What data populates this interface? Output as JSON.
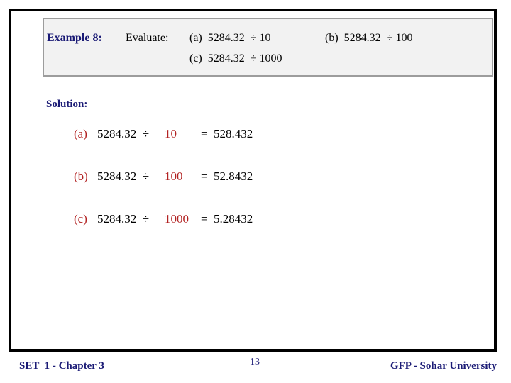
{
  "example_box": {
    "title": "Example 8:",
    "prompt": "Evaluate:",
    "items": [
      {
        "text": "(a)  5284.32  ÷ 10"
      },
      {
        "text": "(b)  5284.32  ÷ 100"
      },
      {
        "text": "(c)  5284.32  ÷ 1000"
      }
    ]
  },
  "solution": {
    "heading": "Solution:",
    "rows": [
      {
        "label": "(a)",
        "lhs": "5284.32  ÷",
        "divisor": "10",
        "eq": "=",
        "result": "528.432"
      },
      {
        "label": "(b)",
        "lhs": "5284.32  ÷",
        "divisor": "100",
        "eq": "=",
        "result": "52.8432"
      },
      {
        "label": "(c)",
        "lhs": "5284.32  ÷",
        "divisor": "1000",
        "eq": "=",
        "result": "5.28432"
      }
    ]
  },
  "footer": {
    "left": "SET  1 - Chapter 3",
    "page_number": "13",
    "right": "GFP - Sohar University"
  },
  "colors": {
    "navy": "#1a1a75",
    "red": "#b22222",
    "text_black": "#000000",
    "box_background": "#f2f2f2",
    "box_border": "#9c9c9c",
    "slide_border": "#000000"
  }
}
